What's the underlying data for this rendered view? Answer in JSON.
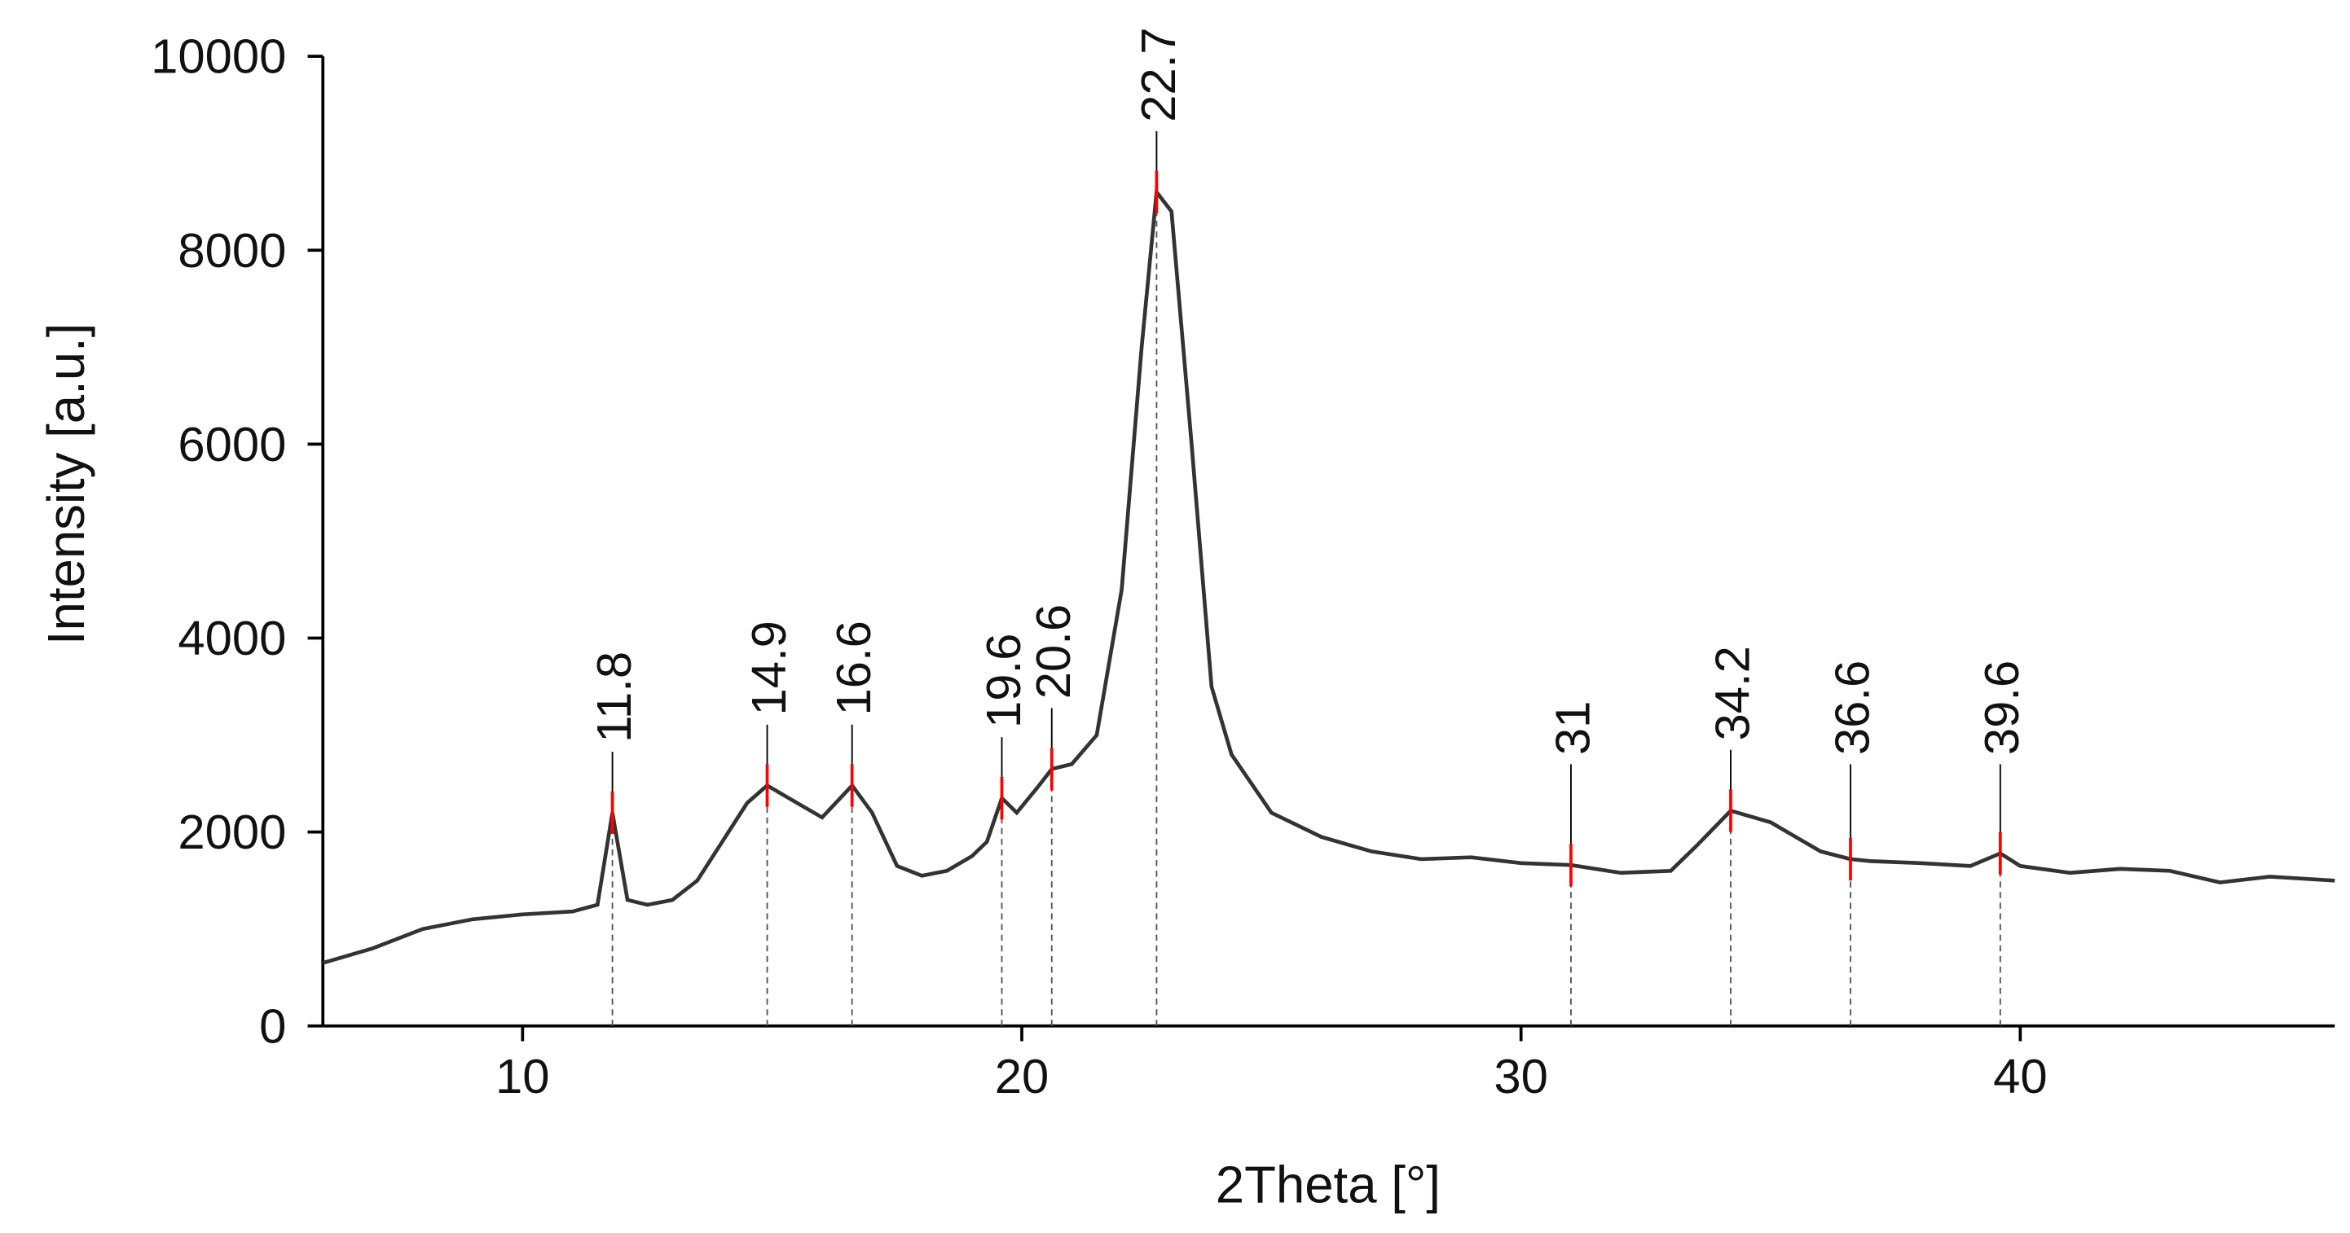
{
  "chart_data": {
    "type": "line",
    "x_label": "2Theta [°]",
    "y_label": "Intensity [a.u.]",
    "xlim": [
      6,
      46.3
    ],
    "ylim": [
      0,
      10000
    ],
    "xticks": [
      10,
      20,
      30,
      40
    ],
    "yticks": [
      0,
      2000,
      4000,
      6000,
      8000,
      10000
    ],
    "series": [
      {
        "color": "#333333",
        "x": [
          6,
          7,
          8,
          9,
          10,
          11,
          11.5,
          11.8,
          12.1,
          12.5,
          13,
          13.5,
          14,
          14.5,
          14.9,
          15.5,
          16,
          16.6,
          17,
          17.5,
          18,
          18.5,
          19,
          19.3,
          19.6,
          19.9,
          20.3,
          20.6,
          21,
          21.5,
          22,
          22.4,
          22.7,
          23,
          23.4,
          23.8,
          24.2,
          24.6,
          25,
          26,
          27,
          28,
          29,
          30,
          31,
          32,
          33,
          33.5,
          34.2,
          35,
          35.5,
          36,
          36.6,
          37,
          38,
          39,
          39.6,
          40,
          41,
          42,
          43,
          44,
          45,
          46.3
        ],
        "values": [
          650,
          800,
          1000,
          1100,
          1150,
          1180,
          1250,
          2200,
          1300,
          1250,
          1300,
          1500,
          1900,
          2300,
          2480,
          2300,
          2150,
          2480,
          2200,
          1650,
          1550,
          1600,
          1750,
          1900,
          2350,
          2200,
          2450,
          2650,
          2700,
          3000,
          4500,
          7000,
          8600,
          8400,
          6000,
          3500,
          2800,
          2500,
          2200,
          1950,
          1800,
          1720,
          1740,
          1680,
          1660,
          1580,
          1600,
          1850,
          2220,
          2100,
          1950,
          1800,
          1720,
          1700,
          1680,
          1650,
          1780,
          1650,
          1580,
          1620,
          1600,
          1480,
          1540,
          1500
        ]
      }
    ],
    "peaks": [
      11.8,
      14.9,
      16.6,
      19.6,
      20.6,
      22.7,
      31,
      34.2,
      36.6,
      39.6
    ],
    "peak_marker_color": "#ff0000"
  }
}
